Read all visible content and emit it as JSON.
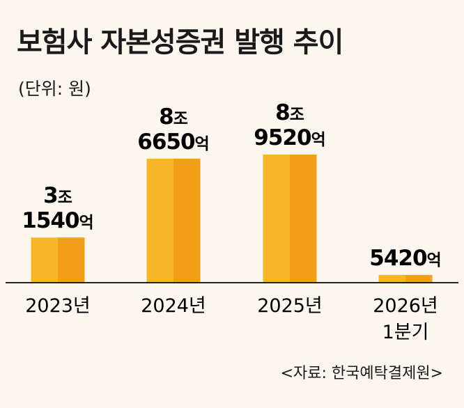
{
  "title": "보험사 자본성증권 발행 추이",
  "unit_label": "(단위: 원)",
  "source": "<자료: 한국예탁결제원>",
  "chart_data": {
    "type": "bar",
    "title": "보험사 자본성증권 발행 추이",
    "unit": "원",
    "categories": [
      [
        "2023년"
      ],
      [
        "2024년"
      ],
      [
        "2025년"
      ],
      [
        "2026년",
        "1분기"
      ]
    ],
    "values_eok": [
      31540,
      86650,
      89520,
      5420
    ],
    "value_labels": [
      [
        {
          "num": "3",
          "unit": "조"
        },
        {
          "num": "1540",
          "unit": "억"
        }
      ],
      [
        {
          "num": "8",
          "unit": "조"
        },
        {
          "num": "6650",
          "unit": "억"
        }
      ],
      [
        {
          "num": "8",
          "unit": "조"
        },
        {
          "num": "9520",
          "unit": "억"
        }
      ],
      [
        {
          "num": "5420",
          "unit": "억"
        }
      ]
    ],
    "colors": {
      "bar_light": "#f7b62a",
      "bar_dark": "#f2a01a",
      "axis": "#222222"
    },
    "grid": false,
    "legend": "none"
  }
}
